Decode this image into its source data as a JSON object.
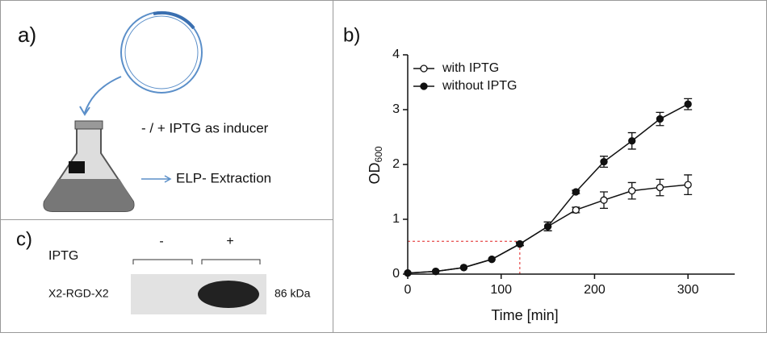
{
  "panel_a": {
    "label": "a)",
    "inducer": "- / + IPTG as inducer",
    "extraction": "ELP- Extraction"
  },
  "panel_c": {
    "label": "c)",
    "row_label": "IPTG",
    "minus": "-",
    "plus": "+",
    "protein": "X2-RGD-X2",
    "size": "86 kDa"
  },
  "chart_data": {
    "type": "line",
    "panel_label": "b)",
    "xlabel": "Time [min]",
    "ylabel": "OD",
    "ylabel_sub": "600",
    "x": [
      0,
      30,
      60,
      90,
      120,
      150,
      180,
      210,
      240,
      270,
      300
    ],
    "series": [
      {
        "name": "with IPTG",
        "color": "#111111",
        "marker": "open",
        "values": [
          0.02,
          0.05,
          0.12,
          0.27,
          0.55,
          0.87,
          1.17,
          1.35,
          1.52,
          1.58,
          1.63
        ],
        "errors": [
          0,
          0,
          0,
          0,
          0.03,
          0.08,
          0.05,
          0.15,
          0.15,
          0.15,
          0.18
        ]
      },
      {
        "name": "without IPTG",
        "color": "#111111",
        "marker": "filled",
        "values": [
          0.02,
          0.05,
          0.12,
          0.27,
          0.55,
          0.87,
          1.5,
          2.05,
          2.43,
          2.83,
          3.1
        ],
        "errors": [
          0,
          0,
          0,
          0,
          0.03,
          0.08,
          0.03,
          0.1,
          0.15,
          0.12,
          0.1
        ]
      }
    ],
    "xlim": [
      0,
      350
    ],
    "xticks": [
      0,
      100,
      200,
      300
    ],
    "ylim": [
      0,
      4
    ],
    "yticks": [
      0,
      1,
      2,
      3,
      4
    ],
    "ref_x": 120,
    "ref_y": 0.6,
    "ref_color": "#e02020"
  }
}
